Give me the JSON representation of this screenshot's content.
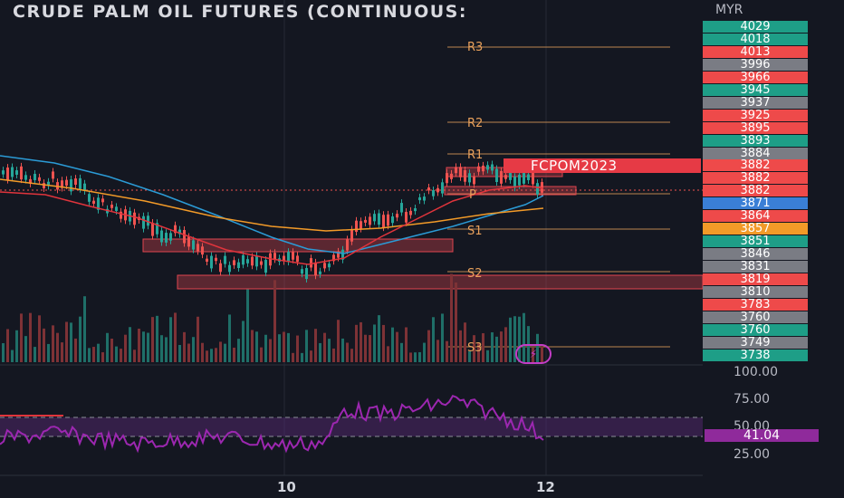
{
  "header": {
    "title": "CRUDE PALM OIL FUTURES (CONTINUOUS:",
    "currency": "MYR"
  },
  "badge": {
    "symbol": "FCPOM2023"
  },
  "pivots": {
    "r3": "R3",
    "r2": "R2",
    "r1": "R1",
    "p": "P",
    "s1": "S1",
    "s2": "S2",
    "s3": "S3"
  },
  "price_axis": [
    {
      "label": "4029",
      "color": "#1e9e87"
    },
    {
      "label": "4018",
      "color": "#1e9e87"
    },
    {
      "label": "4013",
      "color": "#ee4a4a"
    },
    {
      "label": "3996",
      "color": "#7a7c84"
    },
    {
      "label": "3966",
      "color": "#ee4a4a"
    },
    {
      "label": "3945",
      "color": "#1e9e87"
    },
    {
      "label": "3937",
      "color": "#7a7c84"
    },
    {
      "label": "3925",
      "color": "#ee4a4a"
    },
    {
      "label": "3895",
      "color": "#ee4a4a"
    },
    {
      "label": "3893",
      "color": "#1e9e87"
    },
    {
      "label": "3884",
      "color": "#7a7c84"
    },
    {
      "label": "3882",
      "color": "#ee4a4a"
    },
    {
      "label": "3882",
      "color": "#ee4a4a"
    },
    {
      "label": "3882",
      "color": "#ee4a4a"
    },
    {
      "label": "3871",
      "color": "#3a7fd6"
    },
    {
      "label": "3864",
      "color": "#ee4a4a"
    },
    {
      "label": "3857",
      "color": "#f29a28"
    },
    {
      "label": "3851",
      "color": "#1e9e87"
    },
    {
      "label": "3846",
      "color": "#7a7c84"
    },
    {
      "label": "3831",
      "color": "#7a7c84"
    },
    {
      "label": "3819",
      "color": "#ee4a4a"
    },
    {
      "label": "3810",
      "color": "#7a7c84"
    },
    {
      "label": "3783",
      "color": "#ee4a4a"
    },
    {
      "label": "3760",
      "color": "#7a7c84"
    },
    {
      "label": "3760",
      "color": "#1e9e87"
    },
    {
      "label": "3749",
      "color": "#7a7c84"
    },
    {
      "label": "3738",
      "color": "#1e9e87"
    }
  ],
  "oscillator": {
    "ticks": [
      "100.00",
      "75.00",
      "50.00",
      "25.00"
    ],
    "current": "41.04"
  },
  "x_axis": {
    "labels": [
      "10",
      "12"
    ]
  },
  "colors": {
    "up": "#26a69a",
    "down": "#ef5350",
    "ma_blue": "#2b9bd6",
    "ma_orange": "#f29a28",
    "ma_red": "#e0343c",
    "rsi": "#9c27b0",
    "pivot": "#e8a05b"
  },
  "flash_icon": "lightning-icon"
}
